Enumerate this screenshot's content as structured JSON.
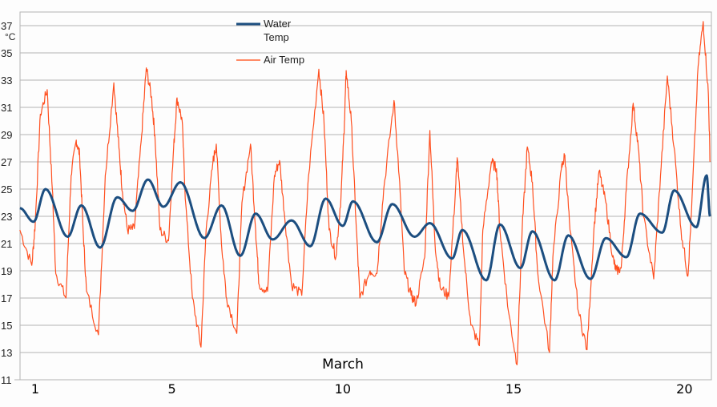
{
  "chart_data": {
    "type": "line",
    "title": "",
    "xlabel": "March",
    "ylabel": "°C",
    "ylim": [
      11,
      38
    ],
    "yticks": [
      11,
      13,
      15,
      17,
      19,
      21,
      23,
      25,
      27,
      29,
      31,
      33,
      35,
      37
    ],
    "xticks": [
      1,
      5,
      10,
      15,
      20
    ],
    "xlim": [
      0.55,
      20.75
    ],
    "grid": true,
    "legend_position": "top-center",
    "colors": {
      "water": "#1c4e80",
      "air": "#ff4f1f",
      "grid": "#b3b3b3",
      "axis": "#b3b3b3"
    },
    "series": [
      {
        "name": "Water Temp",
        "points": [
          [
            0.55,
            23.6
          ],
          [
            0.95,
            22.6
          ],
          [
            1.3,
            25.0
          ],
          [
            1.95,
            21.5
          ],
          [
            2.35,
            23.8
          ],
          [
            2.9,
            20.7
          ],
          [
            3.4,
            24.4
          ],
          [
            3.85,
            23.4
          ],
          [
            4.3,
            25.7
          ],
          [
            4.75,
            23.7
          ],
          [
            5.25,
            25.5
          ],
          [
            5.95,
            21.4
          ],
          [
            6.45,
            23.8
          ],
          [
            7.0,
            20.1
          ],
          [
            7.45,
            23.2
          ],
          [
            7.95,
            21.3
          ],
          [
            8.5,
            22.7
          ],
          [
            9.05,
            20.8
          ],
          [
            9.5,
            24.3
          ],
          [
            10.0,
            22.3
          ],
          [
            10.3,
            24.1
          ],
          [
            11.0,
            21.1
          ],
          [
            11.45,
            23.9
          ],
          [
            12.1,
            21.5
          ],
          [
            12.55,
            22.5
          ],
          [
            13.2,
            19.9
          ],
          [
            13.5,
            22.0
          ],
          [
            14.2,
            18.3
          ],
          [
            14.6,
            22.4
          ],
          [
            15.2,
            19.2
          ],
          [
            15.55,
            21.9
          ],
          [
            16.2,
            18.3
          ],
          [
            16.6,
            21.6
          ],
          [
            17.25,
            18.4
          ],
          [
            17.7,
            21.4
          ],
          [
            18.3,
            20.0
          ],
          [
            18.7,
            23.2
          ],
          [
            19.35,
            21.8
          ],
          [
            19.7,
            24.9
          ],
          [
            20.35,
            22.2
          ],
          [
            20.65,
            26.0
          ],
          [
            20.75,
            23.0
          ]
        ]
      },
      {
        "name": "Air Temp",
        "points": [
          [
            0.55,
            22.0
          ],
          [
            0.9,
            19.4
          ],
          [
            1.0,
            22.5
          ],
          [
            1.15,
            30.5
          ],
          [
            1.35,
            32.3
          ],
          [
            1.5,
            25.0
          ],
          [
            1.6,
            18.8
          ],
          [
            1.9,
            17.0
          ],
          [
            2.05,
            26.0
          ],
          [
            2.2,
            28.6
          ],
          [
            2.3,
            27.5
          ],
          [
            2.4,
            22.0
          ],
          [
            2.5,
            17.5
          ],
          [
            2.85,
            14.3
          ],
          [
            3.05,
            26.0
          ],
          [
            3.3,
            32.8
          ],
          [
            3.45,
            28.0
          ],
          [
            3.55,
            24.8
          ],
          [
            3.7,
            22.0
          ],
          [
            3.9,
            22.1
          ],
          [
            4.1,
            28.5
          ],
          [
            4.25,
            33.9
          ],
          [
            4.4,
            31.8
          ],
          [
            4.5,
            29.0
          ],
          [
            4.65,
            22.0
          ],
          [
            4.9,
            21.2
          ],
          [
            5.05,
            28.0
          ],
          [
            5.15,
            31.7
          ],
          [
            5.3,
            30.0
          ],
          [
            5.4,
            24.0
          ],
          [
            5.6,
            17.0
          ],
          [
            5.85,
            13.4
          ],
          [
            6.0,
            22.0
          ],
          [
            6.2,
            27.0
          ],
          [
            6.3,
            28.3
          ],
          [
            6.45,
            21.0
          ],
          [
            6.6,
            17.0
          ],
          [
            6.9,
            14.4
          ],
          [
            7.05,
            24.0
          ],
          [
            7.3,
            28.3
          ],
          [
            7.45,
            22.0
          ],
          [
            7.55,
            18.0
          ],
          [
            7.8,
            17.5
          ],
          [
            8.0,
            26.0
          ],
          [
            8.15,
            27.1
          ],
          [
            8.3,
            23.0
          ],
          [
            8.5,
            18.0
          ],
          [
            8.8,
            17.2
          ],
          [
            9.0,
            26.0
          ],
          [
            9.3,
            33.8
          ],
          [
            9.45,
            30.0
          ],
          [
            9.6,
            22.0
          ],
          [
            9.8,
            20.0
          ],
          [
            9.95,
            24.5
          ],
          [
            10.05,
            30.0
          ],
          [
            10.1,
            33.7
          ],
          [
            10.25,
            30.0
          ],
          [
            10.4,
            22.0
          ],
          [
            10.5,
            17.0
          ],
          [
            10.8,
            19.0
          ],
          [
            11.0,
            18.8
          ],
          [
            11.2,
            25.0
          ],
          [
            11.5,
            31.5
          ],
          [
            11.65,
            26.0
          ],
          [
            11.8,
            19.0
          ],
          [
            12.0,
            17.2
          ],
          [
            12.15,
            16.6
          ],
          [
            12.4,
            20.0
          ],
          [
            12.55,
            29.3
          ],
          [
            12.7,
            21.0
          ],
          [
            12.85,
            17.8
          ],
          [
            13.1,
            17.1
          ],
          [
            13.3,
            25.0
          ],
          [
            13.35,
            27.3
          ],
          [
            13.55,
            20.0
          ],
          [
            13.75,
            15.0
          ],
          [
            14.0,
            13.5
          ],
          [
            14.1,
            22.0
          ],
          [
            14.35,
            27.0
          ],
          [
            14.5,
            26.5
          ],
          [
            14.6,
            22.0
          ],
          [
            14.85,
            16.0
          ],
          [
            15.1,
            12.1
          ],
          [
            15.25,
            22.0
          ],
          [
            15.4,
            28.1
          ],
          [
            15.55,
            25.5
          ],
          [
            15.7,
            19.0
          ],
          [
            16.05,
            13.0
          ],
          [
            16.15,
            20.0
          ],
          [
            16.4,
            26.5
          ],
          [
            16.5,
            27.5
          ],
          [
            16.65,
            22.0
          ],
          [
            16.9,
            16.0
          ],
          [
            17.15,
            13.2
          ],
          [
            17.35,
            22.0
          ],
          [
            17.5,
            26.3
          ],
          [
            17.7,
            24.0
          ],
          [
            17.9,
            20.0
          ],
          [
            18.0,
            19.0
          ],
          [
            18.15,
            19.2
          ],
          [
            18.3,
            25.0
          ],
          [
            18.5,
            31.3
          ],
          [
            18.65,
            28.0
          ],
          [
            18.8,
            23.0
          ],
          [
            19.1,
            18.4
          ],
          [
            19.3,
            26.0
          ],
          [
            19.5,
            33.3
          ],
          [
            19.7,
            28.0
          ],
          [
            19.9,
            22.0
          ],
          [
            20.1,
            18.6
          ],
          [
            20.2,
            23.0
          ],
          [
            20.4,
            34.0
          ],
          [
            20.55,
            37.3
          ],
          [
            20.7,
            32.0
          ],
          [
            20.75,
            27.0
          ]
        ]
      }
    ]
  },
  "legend": {
    "water_label_line1": "Water",
    "water_label_line2": "Temp",
    "air_label": "Air Temp"
  },
  "axis": {
    "y_unit": "°C",
    "x_title": "March"
  }
}
